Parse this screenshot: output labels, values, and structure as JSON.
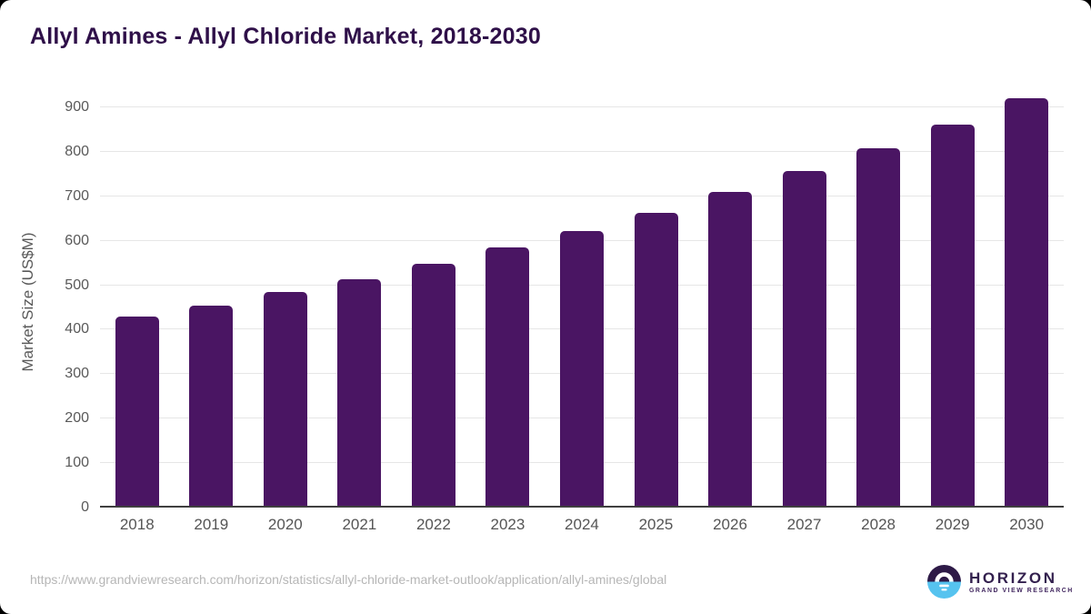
{
  "page": {
    "source_url": "https://www.grandviewresearch.com/horizon/statistics/allyl-chloride-market-outlook/application/allyl-amines/global"
  },
  "logo": {
    "name": "HORIZON",
    "subtitle": "GRAND VIEW RESEARCH",
    "icon": "horizon-sunrise-circle",
    "colors": {
      "top": "#2e1a47",
      "bottom": "#56c3ef",
      "mark": "#ffffff"
    }
  },
  "chart_data": {
    "type": "bar",
    "title": "Allyl Amines - Allyl Chloride Market, 2018-2030",
    "categories": [
      "2018",
      "2019",
      "2020",
      "2021",
      "2022",
      "2023",
      "2024",
      "2025",
      "2026",
      "2027",
      "2028",
      "2029",
      "2030"
    ],
    "values": [
      425,
      451,
      480,
      510,
      544,
      580,
      618,
      659,
      705,
      752,
      803,
      858,
      917
    ],
    "xlabel": "",
    "ylabel": "Market Size (US$M)",
    "ylim": [
      0,
      927
    ],
    "yticks": [
      0,
      100,
      200,
      300,
      400,
      500,
      600,
      700,
      800,
      900
    ],
    "grid": true,
    "legend": null,
    "bar_color": "#4a1563",
    "gridline_color": "#e6e6e6",
    "axis_line_color": "#3f3f3f",
    "tick_label_color": "#595959",
    "title_color": "#2f1049"
  }
}
